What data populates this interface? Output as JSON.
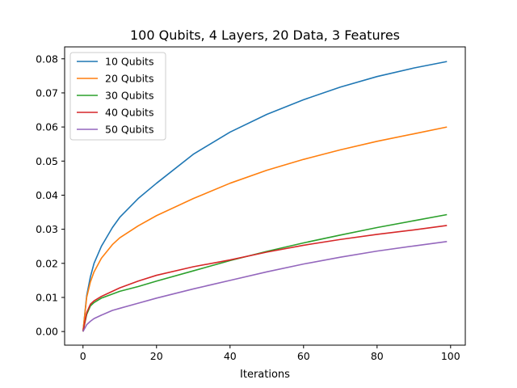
{
  "chart_data": {
    "type": "line",
    "title": "100 Qubits, 4 Layers, 20 Data, 3 Features",
    "xlabel": "Iterations",
    "ylabel": "",
    "xlim": [
      -5,
      104
    ],
    "ylim": [
      -0.004,
      0.0835
    ],
    "xticks": [
      0,
      20,
      40,
      60,
      80,
      100
    ],
    "xtick_labels": [
      "0",
      "20",
      "40",
      "60",
      "80",
      "100"
    ],
    "yticks": [
      0.0,
      0.01,
      0.02,
      0.03,
      0.04,
      0.05,
      0.06,
      0.07,
      0.08
    ],
    "ytick_labels": [
      "0.00",
      "0.01",
      "0.02",
      "0.03",
      "0.04",
      "0.05",
      "0.06",
      "0.07",
      "0.08"
    ],
    "grid": false,
    "legend_position": "top-left",
    "x": [
      0,
      1,
      2,
      3,
      5,
      8,
      10,
      15,
      20,
      30,
      40,
      50,
      60,
      70,
      80,
      90,
      99
    ],
    "series": [
      {
        "name": "10 Qubits",
        "color": "#1f77b4",
        "values": [
          0.0,
          0.0105,
          0.016,
          0.02,
          0.025,
          0.0305,
          0.0335,
          0.039,
          0.0435,
          0.052,
          0.0585,
          0.0637,
          0.068,
          0.0717,
          0.0748,
          0.0773,
          0.0792
        ]
      },
      {
        "name": "20 Qubits",
        "color": "#ff7f0e",
        "values": [
          0.0,
          0.01,
          0.0145,
          0.0175,
          0.0215,
          0.0255,
          0.0275,
          0.031,
          0.034,
          0.039,
          0.0435,
          0.0473,
          0.0505,
          0.0533,
          0.0558,
          0.058,
          0.06
        ]
      },
      {
        "name": "30 Qubits",
        "color": "#2ca02c",
        "values": [
          0.0,
          0.005,
          0.0075,
          0.0085,
          0.0098,
          0.011,
          0.0118,
          0.0132,
          0.0148,
          0.0178,
          0.0208,
          0.0235,
          0.026,
          0.0283,
          0.0305,
          0.0325,
          0.0343
        ]
      },
      {
        "name": "40 Qubits",
        "color": "#d62728",
        "values": [
          0.0,
          0.0055,
          0.008,
          0.009,
          0.0103,
          0.0118,
          0.0128,
          0.0148,
          0.0165,
          0.019,
          0.021,
          0.0233,
          0.0253,
          0.027,
          0.0285,
          0.0298,
          0.0311
        ]
      },
      {
        "name": "50 Qubits",
        "color": "#9467bd",
        "values": [
          0.0,
          0.002,
          0.003,
          0.0038,
          0.0048,
          0.0062,
          0.0068,
          0.0083,
          0.0098,
          0.0125,
          0.015,
          0.0175,
          0.0198,
          0.0218,
          0.0236,
          0.0251,
          0.0264
        ]
      }
    ]
  }
}
